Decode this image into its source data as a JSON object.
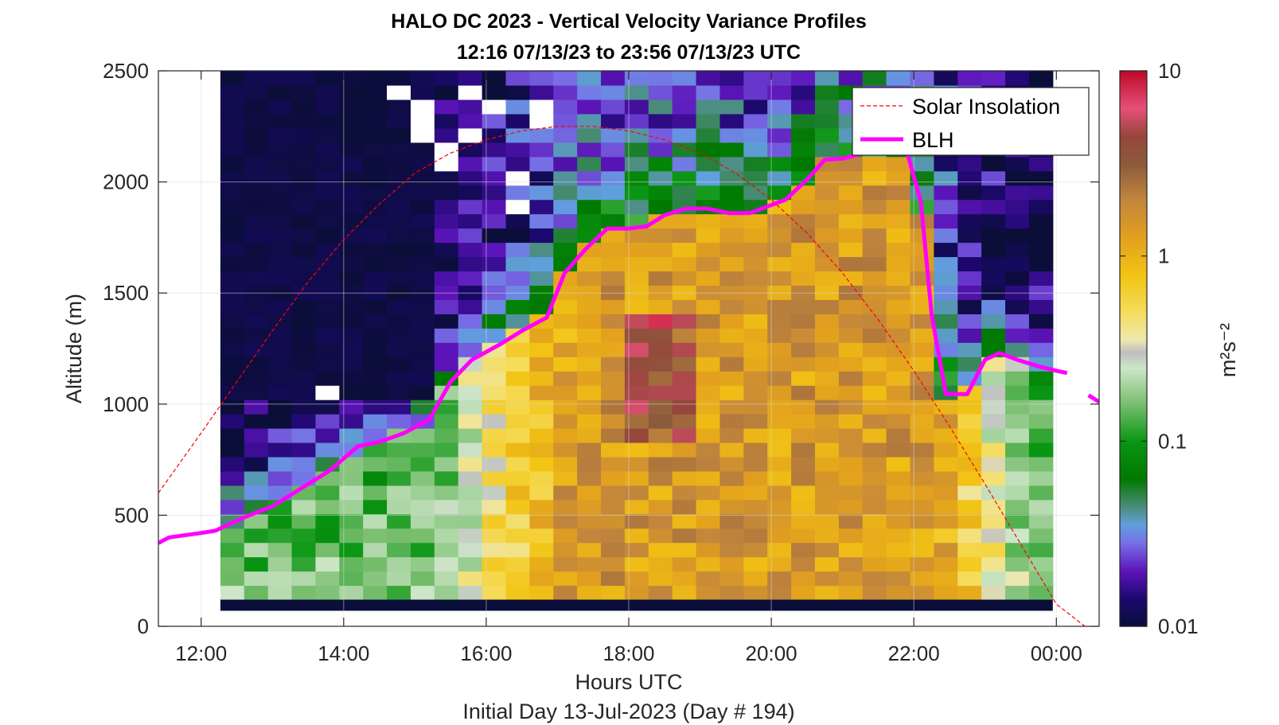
{
  "chart_data": {
    "type": "heatmap",
    "title": "HALO DC 2023 - Vertical Velocity Variance Profiles",
    "subtitle": "12:16 07/13/23 to 23:56 07/13/23  UTC",
    "xlabel": "Hours UTC",
    "xlabel2": "Initial Day 13-Jul-2023 (Day # 194)",
    "ylabel": "Altitude (m)",
    "x_unit": "hours UTC",
    "xlim": [
      11.4,
      24.6
    ],
    "ylim": [
      0,
      2500
    ],
    "x_ticks": [
      12,
      14,
      16,
      18,
      20,
      22,
      24
    ],
    "x_tick_labels": [
      "12:00",
      "14:00",
      "16:00",
      "18:00",
      "20:00",
      "22:00",
      "00:00"
    ],
    "y_ticks": [
      0,
      500,
      1000,
      1500,
      2000,
      2500
    ],
    "y_tick_labels": [
      "0",
      "500",
      "1000",
      "1500",
      "2000",
      "2500"
    ],
    "grid": true,
    "colorbar": {
      "label": "m²s⁻²",
      "scale": "log",
      "range": [
        0.01,
        10
      ],
      "tick_labels": [
        "0.01",
        "0.1",
        "1",
        "10"
      ]
    },
    "heatmap_extent": {
      "x_start": 12.27,
      "x_end": 23.95,
      "column_count": 35,
      "alt_start": 120,
      "alt_end": 2500,
      "row_count": 37
    },
    "series": [
      {
        "name": "Solar Insolation",
        "style": "dashed",
        "color": "#ff0000",
        "x": [
          11.4,
          12.0,
          12.5,
          13.0,
          13.5,
          14.0,
          14.5,
          15.0,
          15.5,
          16.0,
          16.5,
          17.0,
          17.5,
          18.0,
          18.5,
          19.0,
          19.5,
          20.0,
          20.5,
          21.0,
          21.5,
          22.0,
          22.5,
          23.0,
          23.5,
          24.0,
          24.4
        ],
        "y": [
          600,
          870,
          1100,
          1330,
          1550,
          1740,
          1900,
          2040,
          2130,
          2190,
          2230,
          2250,
          2250,
          2230,
          2190,
          2130,
          2040,
          1920,
          1770,
          1590,
          1380,
          1150,
          900,
          640,
          370,
          100,
          0
        ]
      },
      {
        "name": "BLH",
        "style": "solid",
        "color": "#ff00ff",
        "x": [
          11.4,
          11.55,
          12.0,
          12.2,
          12.6,
          13.0,
          13.4,
          13.8,
          14.2,
          14.5,
          14.85,
          15.2,
          15.5,
          15.8,
          16.2,
          16.5,
          16.85,
          17.1,
          17.4,
          17.7,
          18.0,
          18.25,
          18.5,
          18.8,
          19.1,
          19.4,
          19.7,
          19.95,
          20.2,
          20.5,
          20.75,
          21.0,
          21.3,
          21.5,
          21.7,
          21.9,
          22.1,
          22.25,
          22.45,
          22.75,
          23.0,
          23.2,
          23.45,
          23.75,
          24.0,
          24.15
        ],
        "y": [
          375,
          400,
          420,
          430,
          490,
          540,
          620,
          700,
          810,
          830,
          870,
          930,
          1100,
          1200,
          1270,
          1330,
          1390,
          1590,
          1700,
          1790,
          1790,
          1800,
          1850,
          1880,
          1880,
          1860,
          1860,
          1890,
          1920,
          2010,
          2100,
          2105,
          2130,
          2140,
          2140,
          2140,
          1910,
          1400,
          1045,
          1045,
          1200,
          1230,
          1200,
          1170,
          1150,
          1140
        ]
      },
      {
        "name": "BLH (after 00:00)",
        "style": "solid",
        "color": "#ff00ff",
        "x": [
          24.45,
          24.6
        ],
        "y": [
          1040,
          1010
        ]
      }
    ],
    "legend": {
      "placement": "top-right",
      "entries": [
        "Solar Insolation",
        "BLH"
      ]
    }
  }
}
